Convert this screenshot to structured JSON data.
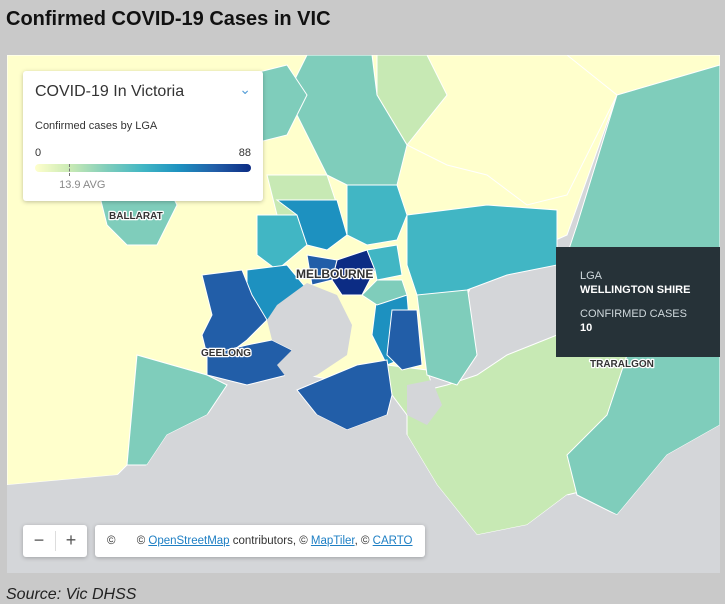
{
  "page": {
    "title": "Confirmed COVID-19 Cases in VIC",
    "source": "Source: Vic DHSS"
  },
  "legend": {
    "title": "COVID-19 In Victoria",
    "subtitle": "Confirmed cases by LGA",
    "min": "0",
    "max": "88",
    "avg_label": "13.9 AVG",
    "avg_value": 13.9,
    "scale_min": 0,
    "scale_max": 88,
    "collapse_icon": "chevron-down-icon"
  },
  "tooltip": {
    "lga_label": "LGA",
    "lga_value": "WELLINGTON SHIRE",
    "cases_label": "CONFIRMED CASES",
    "cases_value": "10"
  },
  "map_labels": {
    "ballarat": "BALLARAT",
    "melbourne": "MELBOURNE",
    "geelong": "GEELONG",
    "traralgon": "TRARALGON"
  },
  "controls": {
    "zoom_out": "−",
    "zoom_in": "+"
  },
  "attribution": {
    "info_icon": "©",
    "prefix": "©",
    "osm_link": "OpenStreetMap",
    "contributors": "contributors, ©",
    "maptiler_link": "MapTiler",
    "sep": ", ©",
    "carto_link": "CARTO"
  },
  "colors": {
    "sea": "#d4d6d9",
    "scale": [
      "#ffffcc",
      "#c7e9b4",
      "#7fcdbb",
      "#41b6c4",
      "#1d91c0",
      "#225ea8",
      "#0c2c84"
    ],
    "tooltip_bg": "#263238",
    "link": "#1e7fc4"
  }
}
